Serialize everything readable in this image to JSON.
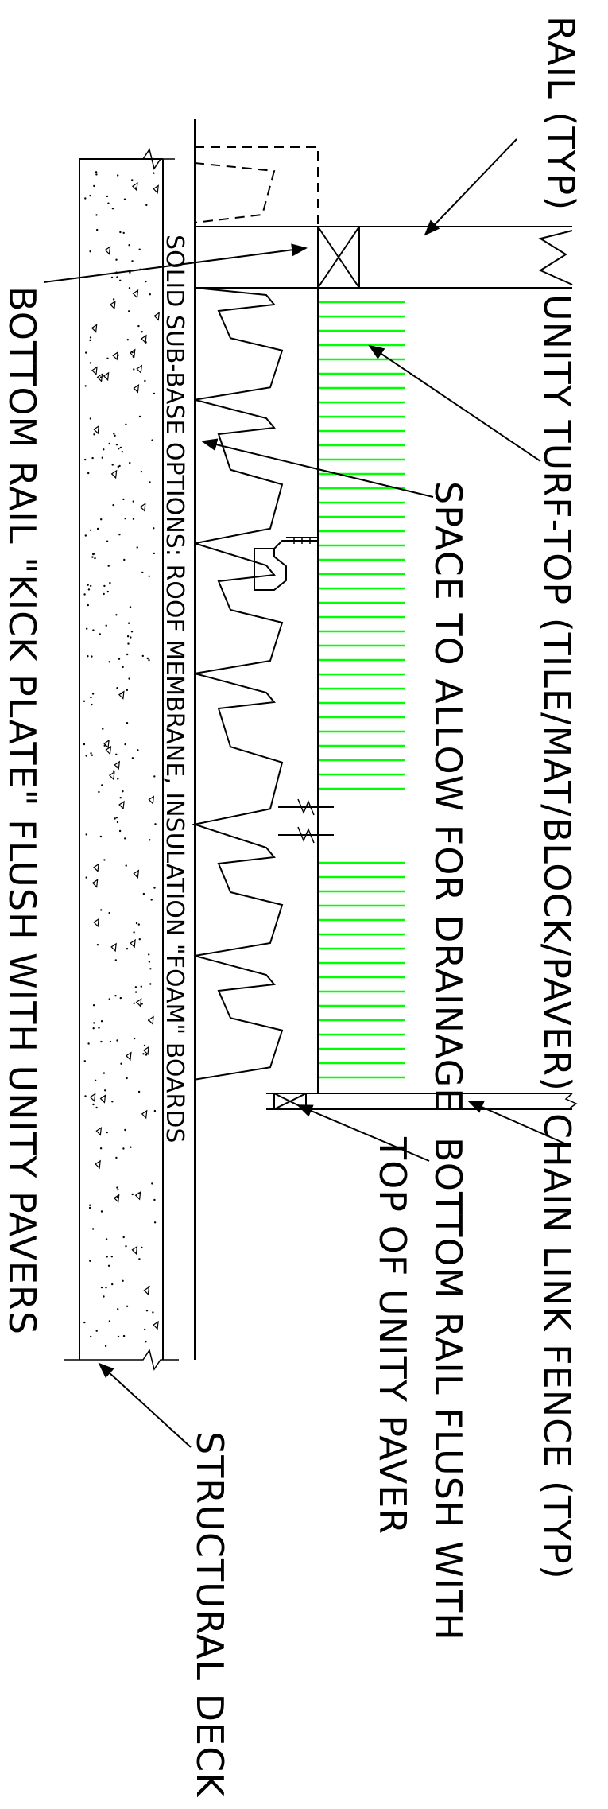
{
  "labels": {
    "rail_typ": "RAIL (TYP)",
    "unity_turf_top": "UNITY TURF-TOP (TILE/MAT/BLOCK/PAVER)",
    "chain_link_fence": "CHAIN LINK FENCE (TYP)",
    "space_drainage": "SPACE TO ALLOW FOR DRAINAGE",
    "bottom_rail_flush_1": "BOTTOM RAIL FLUSH WITH",
    "bottom_rail_flush_2": "TOP OF UNITY PAVER",
    "structural_deck": "STRUCTURAL DECK",
    "sub_base": "SOLID SUB-BASE OPTIONS: ROOF MEMBRANE, INSULATION \"FOAM\" BOARDS",
    "kick_plate": "BOTTOM RAIL \"KICK PLATE\" FLUSH WITH UNITY PAVERS"
  },
  "colors": {
    "line": "#000000",
    "turf": "#00ff00",
    "background": "#ffffff"
  }
}
